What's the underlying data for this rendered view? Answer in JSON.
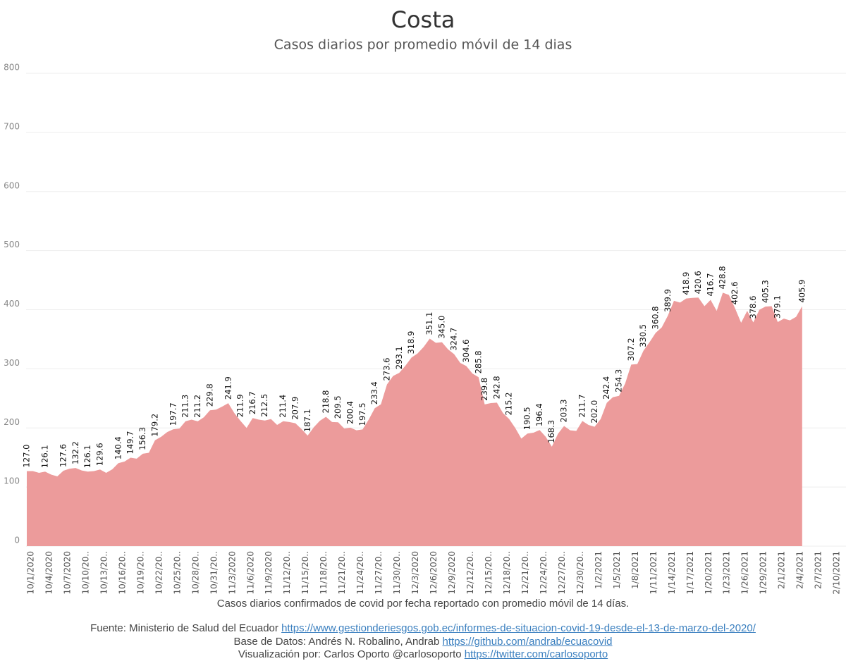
{
  "chart_data": {
    "type": "area",
    "title": "Costa",
    "subtitle": "Casos diarios por promedio móvil de 14 dias",
    "categories": [
      "10/1/2020",
      null,
      null,
      "10/4/2020",
      null,
      null,
      "10/7/2020",
      null,
      null,
      "10/10/20..",
      null,
      null,
      "10/13/20..",
      null,
      null,
      "10/16/20..",
      null,
      null,
      "10/19/20..",
      null,
      null,
      "10/22/20..",
      null,
      null,
      "10/25/20..",
      null,
      null,
      "10/28/20..",
      null,
      null,
      "10/31/20..",
      null,
      null,
      "11/3/2020",
      null,
      null,
      "11/6/2020",
      null,
      null,
      "11/9/2020",
      null,
      null,
      "11/12/20..",
      null,
      null,
      "11/15/20..",
      null,
      null,
      "11/18/20..",
      null,
      null,
      "11/21/20..",
      null,
      null,
      "11/24/20..",
      null,
      null,
      "11/27/20..",
      null,
      null,
      "11/30/20..",
      null,
      null,
      "12/3/2020",
      null,
      null,
      "12/6/2020",
      null,
      null,
      "12/9/2020",
      null,
      null,
      "12/12/20..",
      null,
      null,
      "12/15/20..",
      null,
      null,
      "12/18/20..",
      null,
      null,
      "12/21/20..",
      null,
      null,
      "12/24/20..",
      null,
      null,
      "12/27/20..",
      null,
      null,
      "12/30/20..",
      null,
      null,
      "1/2/2021",
      null,
      null,
      "1/5/2021",
      null,
      null,
      "1/8/2021",
      null,
      null,
      "1/11/2021",
      null,
      null,
      "1/14/2021",
      null,
      null,
      "1/17/2021",
      null,
      null,
      "1/20/2021",
      null,
      null,
      "1/23/2021",
      null,
      null,
      "1/26/2021",
      null,
      null,
      "1/29/2021",
      null,
      null,
      "2/1/2021",
      null,
      null,
      "2/4/2021",
      null,
      null,
      "2/7/2021",
      null,
      null,
      "2/10/2021"
    ],
    "values": [
      127.0,
      127,
      124,
      126.1,
      121,
      118,
      127.6,
      131,
      132.2,
      128,
      126.1,
      127,
      129.6,
      124,
      130,
      140.4,
      143,
      149.7,
      148,
      156.3,
      158,
      179.2,
      185,
      193,
      197.7,
      199,
      211.3,
      214,
      211.2,
      218,
      229.8,
      231,
      236,
      241.9,
      225,
      211.9,
      200,
      216.7,
      214,
      212.5,
      215,
      205,
      211.4,
      210,
      207.9,
      198,
      187.1,
      201,
      212,
      218.8,
      210,
      209.5,
      199,
      200.4,
      196,
      197.5,
      214,
      233.4,
      240,
      273.6,
      288,
      293.1,
      305,
      318.9,
      326,
      337,
      351.1,
      344,
      345.0,
      333,
      324.7,
      310,
      304.6,
      292,
      285.8,
      239.8,
      242,
      242.8,
      225,
      215.2,
      200,
      182,
      190.5,
      192,
      196.4,
      185,
      168.3,
      190,
      203.3,
      196,
      195,
      211.7,
      205,
      202.0,
      215,
      242.4,
      252,
      254.3,
      275,
      307.2,
      308,
      330.5,
      345,
      360.8,
      370,
      389.9,
      415,
      412,
      418.9,
      420,
      420.6,
      406,
      416.7,
      398,
      428.8,
      425,
      402.6,
      378,
      398,
      378.6,
      400,
      405.3,
      406,
      379.1,
      385,
      382,
      388,
      405.9,
      null,
      null,
      null,
      null,
      null
    ],
    "value_labels": [
      "127.0",
      null,
      null,
      "126.1",
      null,
      null,
      "127.6",
      null,
      "132.2",
      null,
      "126.1",
      null,
      "129.6",
      null,
      null,
      "140.4",
      null,
      "149.7",
      null,
      "156.3",
      null,
      "179.2",
      null,
      null,
      "197.7",
      null,
      "211.3",
      null,
      "211.2",
      null,
      "229.8",
      null,
      null,
      "241.9",
      null,
      "211.9",
      null,
      "216.7",
      null,
      "212.5",
      null,
      null,
      "211.4",
      null,
      "207.9",
      null,
      "187.1",
      null,
      null,
      "218.8",
      null,
      "209.5",
      null,
      "200.4",
      null,
      "197.5",
      null,
      "233.4",
      null,
      "273.6",
      null,
      "293.1",
      null,
      "318.9",
      null,
      null,
      "351.1",
      null,
      "345.0",
      null,
      "324.7",
      null,
      "304.6",
      null,
      "285.8",
      "239.8",
      null,
      "242.8",
      null,
      "215.2",
      null,
      null,
      "190.5",
      null,
      "196.4",
      null,
      "168.3",
      null,
      "203.3",
      null,
      null,
      "211.7",
      null,
      "202.0",
      null,
      "242.4",
      null,
      "254.3",
      null,
      "307.2",
      null,
      "330.5",
      null,
      "360.8",
      null,
      "389.9",
      null,
      null,
      "418.9",
      null,
      "420.6",
      null,
      "416.7",
      null,
      "428.8",
      null,
      "402.6",
      null,
      null,
      "378.6",
      null,
      "405.3",
      null,
      "379.1",
      null,
      null,
      null,
      "405.9",
      null,
      null,
      null,
      null,
      null
    ],
    "color": "#ec9b9b",
    "ylim": [
      0,
      800
    ],
    "yticks": [
      0,
      100,
      200,
      300,
      400,
      500,
      600,
      700,
      800
    ],
    "grid": true
  },
  "footer": {
    "caption": "Casos diarios confirmados de covid por fecha reportado con promedio móvil de 14 días.",
    "source_label": "Fuente: Ministerio de Salud del Ecuador",
    "source_url": "https://www.gestionderiesgos.gob.ec/informes-de-situacion-covid-19-desde-el-13-de-marzo-del-2020/",
    "db_label": "Base de Datos: Andrés N. Robalino, Andrab",
    "db_url": "https://github.com/andrab/ecuacovid",
    "viz_label": "Visualización por: Carlos Oporto @carlosoporto",
    "viz_url": "https://twitter.com/carlosoporto"
  }
}
